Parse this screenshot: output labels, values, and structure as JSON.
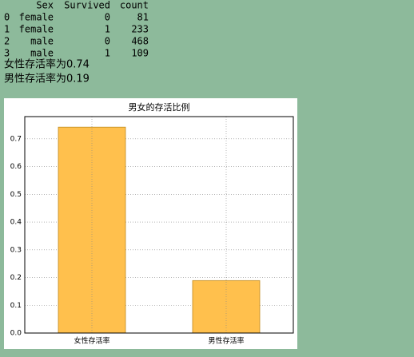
{
  "table": {
    "header": [
      "Sex",
      "Survived",
      "count"
    ],
    "rows": [
      [
        0,
        "female",
        0,
        81
      ],
      [
        1,
        "female",
        1,
        233
      ],
      [
        2,
        "male",
        0,
        468
      ],
      [
        3,
        "male",
        1,
        109
      ]
    ]
  },
  "lines": [
    "女性存活率为0.74",
    "男性存活率为0.19"
  ],
  "chart_data": {
    "type": "bar",
    "title": "男女的存活比例",
    "categories": [
      "女性存活率",
      "男性存活率"
    ],
    "values": [
      0.742,
      0.189
    ],
    "color": "#ffc04d",
    "ylim": [
      0,
      0.78
    ],
    "yticks": [
      {
        "value": 0,
        "label": "0.0"
      },
      0.1,
      0.2,
      0.3,
      0.4,
      0.5,
      0.6,
      0.7
    ],
    "grid": true
  }
}
